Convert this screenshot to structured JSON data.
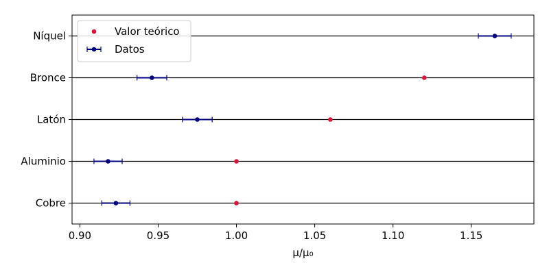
{
  "chart_data": {
    "type": "scatter",
    "title": "",
    "xlabel": "μ/μ₀",
    "ylabel": "",
    "categories": [
      "Cobre",
      "Aluminio",
      "Latón",
      "Bronce",
      "Níquel"
    ],
    "xlim": [
      0.895,
      1.19
    ],
    "xticks": [
      0.9,
      0.95,
      1.0,
      1.05,
      1.1,
      1.15
    ],
    "xtick_labels": [
      "0.90",
      "0.95",
      "1.00",
      "1.05",
      "1.10",
      "1.15"
    ],
    "grid": "horizontal lines at each category",
    "legend_position": "top-left",
    "series": [
      {
        "name": "Valor teórico",
        "marker": "dot",
        "color": "#dc143c",
        "values": [
          1.0,
          1.0,
          1.06,
          1.12,
          null
        ]
      },
      {
        "name": "Datos",
        "marker": "dot-errorbar",
        "color": "#000080",
        "values": [
          0.923,
          0.918,
          0.975,
          0.946,
          1.165
        ],
        "error": [
          0.009,
          0.009,
          0.0095,
          0.0095,
          0.0105
        ]
      }
    ]
  }
}
